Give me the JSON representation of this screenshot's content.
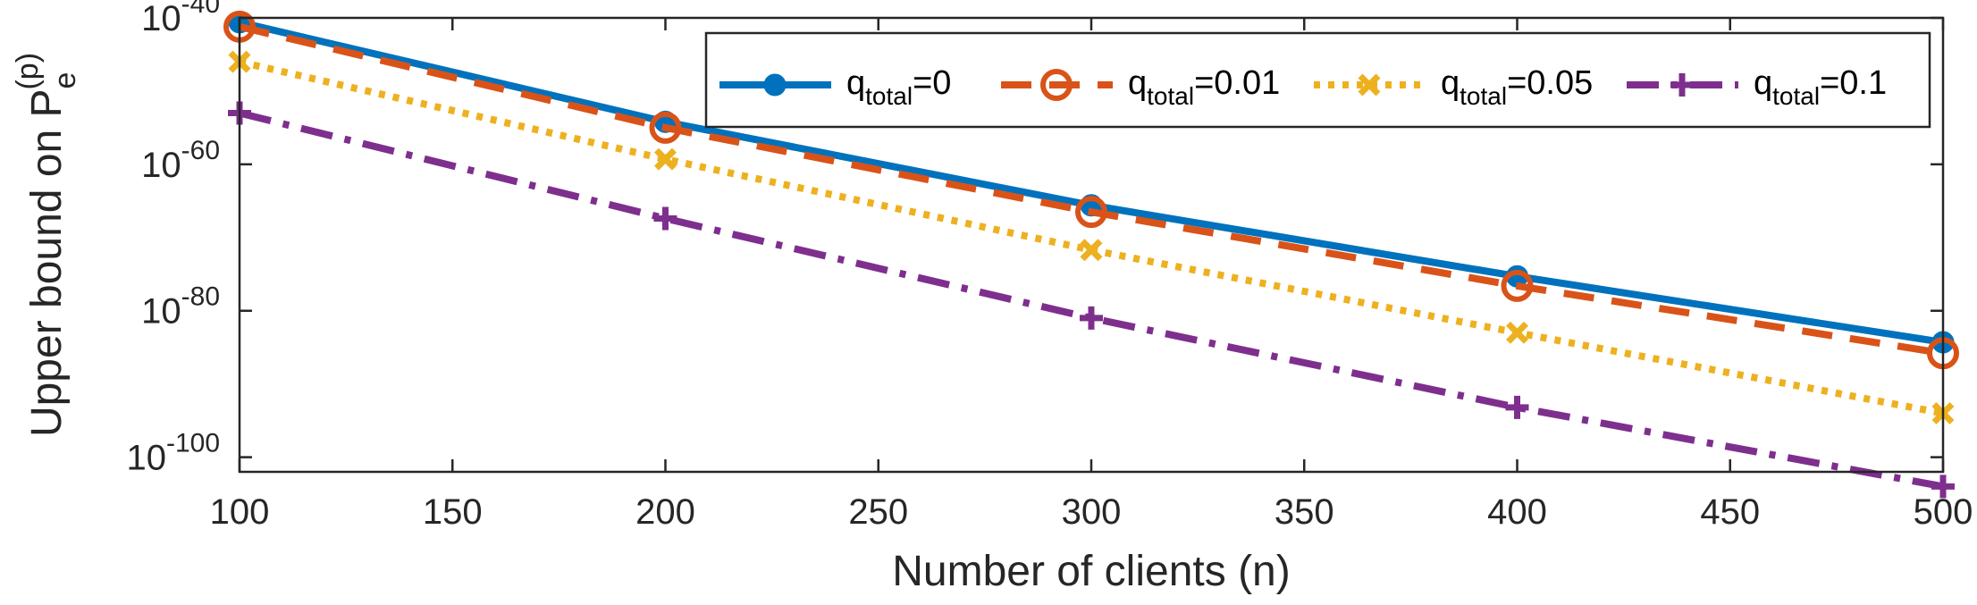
{
  "chart_data": {
    "type": "line",
    "yscale": "log",
    "xlabel": "Number of clients (n)",
    "ylabel_main": "Upper bound on P",
    "ylabel_sub": "e",
    "ylabel_sup": "(p)",
    "xlim": [
      100,
      500
    ],
    "xticks": [
      100,
      150,
      200,
      250,
      300,
      350,
      400,
      450,
      500
    ],
    "ylim_exponent": [
      -102,
      -40
    ],
    "yticks_exponent": [
      -40,
      -60,
      -80,
      -100
    ],
    "ytick_base": "10",
    "x": [
      100,
      200,
      300,
      400,
      500
    ],
    "series": [
      {
        "name": "q_total=0",
        "legend_main": "q",
        "legend_sub": "total",
        "legend_value": "=0",
        "color": "#0072BD",
        "dash": "solid",
        "marker": "filled-circle",
        "log10_values": [
          -40.6,
          -54.2,
          -65.6,
          -75.3,
          -84.3
        ]
      },
      {
        "name": "q_total=0.01",
        "legend_main": "q",
        "legend_sub": "total",
        "legend_value": "=0.01",
        "color": "#D95319",
        "dash": "dashed",
        "marker": "open-circle",
        "log10_values": [
          -41.2,
          -55.0,
          -66.5,
          -76.6,
          -85.8
        ]
      },
      {
        "name": "q_total=0.05",
        "legend_main": "q",
        "legend_sub": "total",
        "legend_value": "=0.05",
        "color": "#EDB120",
        "dash": "dotted",
        "marker": "x",
        "log10_values": [
          -46.0,
          -59.3,
          -71.7,
          -83.0,
          -94.0
        ]
      },
      {
        "name": "q_total=0.1",
        "legend_main": "q",
        "legend_sub": "total",
        "legend_value": "=0.1",
        "color": "#7E2F8E",
        "dash": "dashdot",
        "marker": "plus",
        "log10_values": [
          -53.0,
          -67.4,
          -81.0,
          -93.2,
          -104.0
        ]
      }
    ],
    "legend_position": "top-right",
    "grid": false
  }
}
